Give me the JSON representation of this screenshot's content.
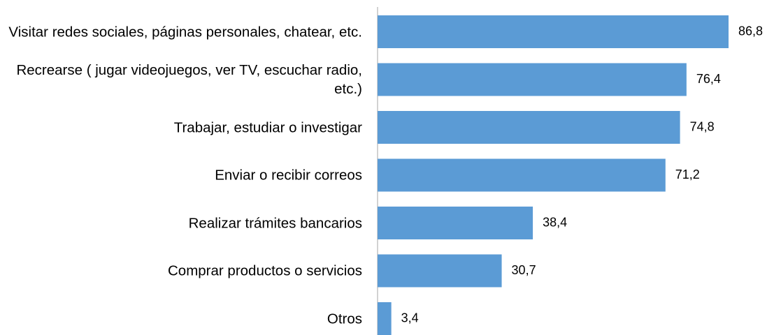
{
  "chart_data": {
    "type": "bar",
    "orientation": "horizontal",
    "categories": [
      "Visitar redes sociales, páginas personales, chatear, etc.",
      "Recrearse ( jugar videojuegos, ver TV, escuchar radio, etc.)",
      "Trabajar, estudiar o investigar",
      "Enviar o recibir correos",
      "Realizar trámites bancarios",
      "Comprar productos o servicios",
      "Otros"
    ],
    "values": [
      86.8,
      76.4,
      74.8,
      71.2,
      38.4,
      30.7,
      3.4
    ],
    "value_labels": [
      "86,8",
      "76,4",
      "74,8",
      "71,2",
      "38,4",
      "30,7",
      "3,4"
    ],
    "color": "#5b9bd5"
  }
}
